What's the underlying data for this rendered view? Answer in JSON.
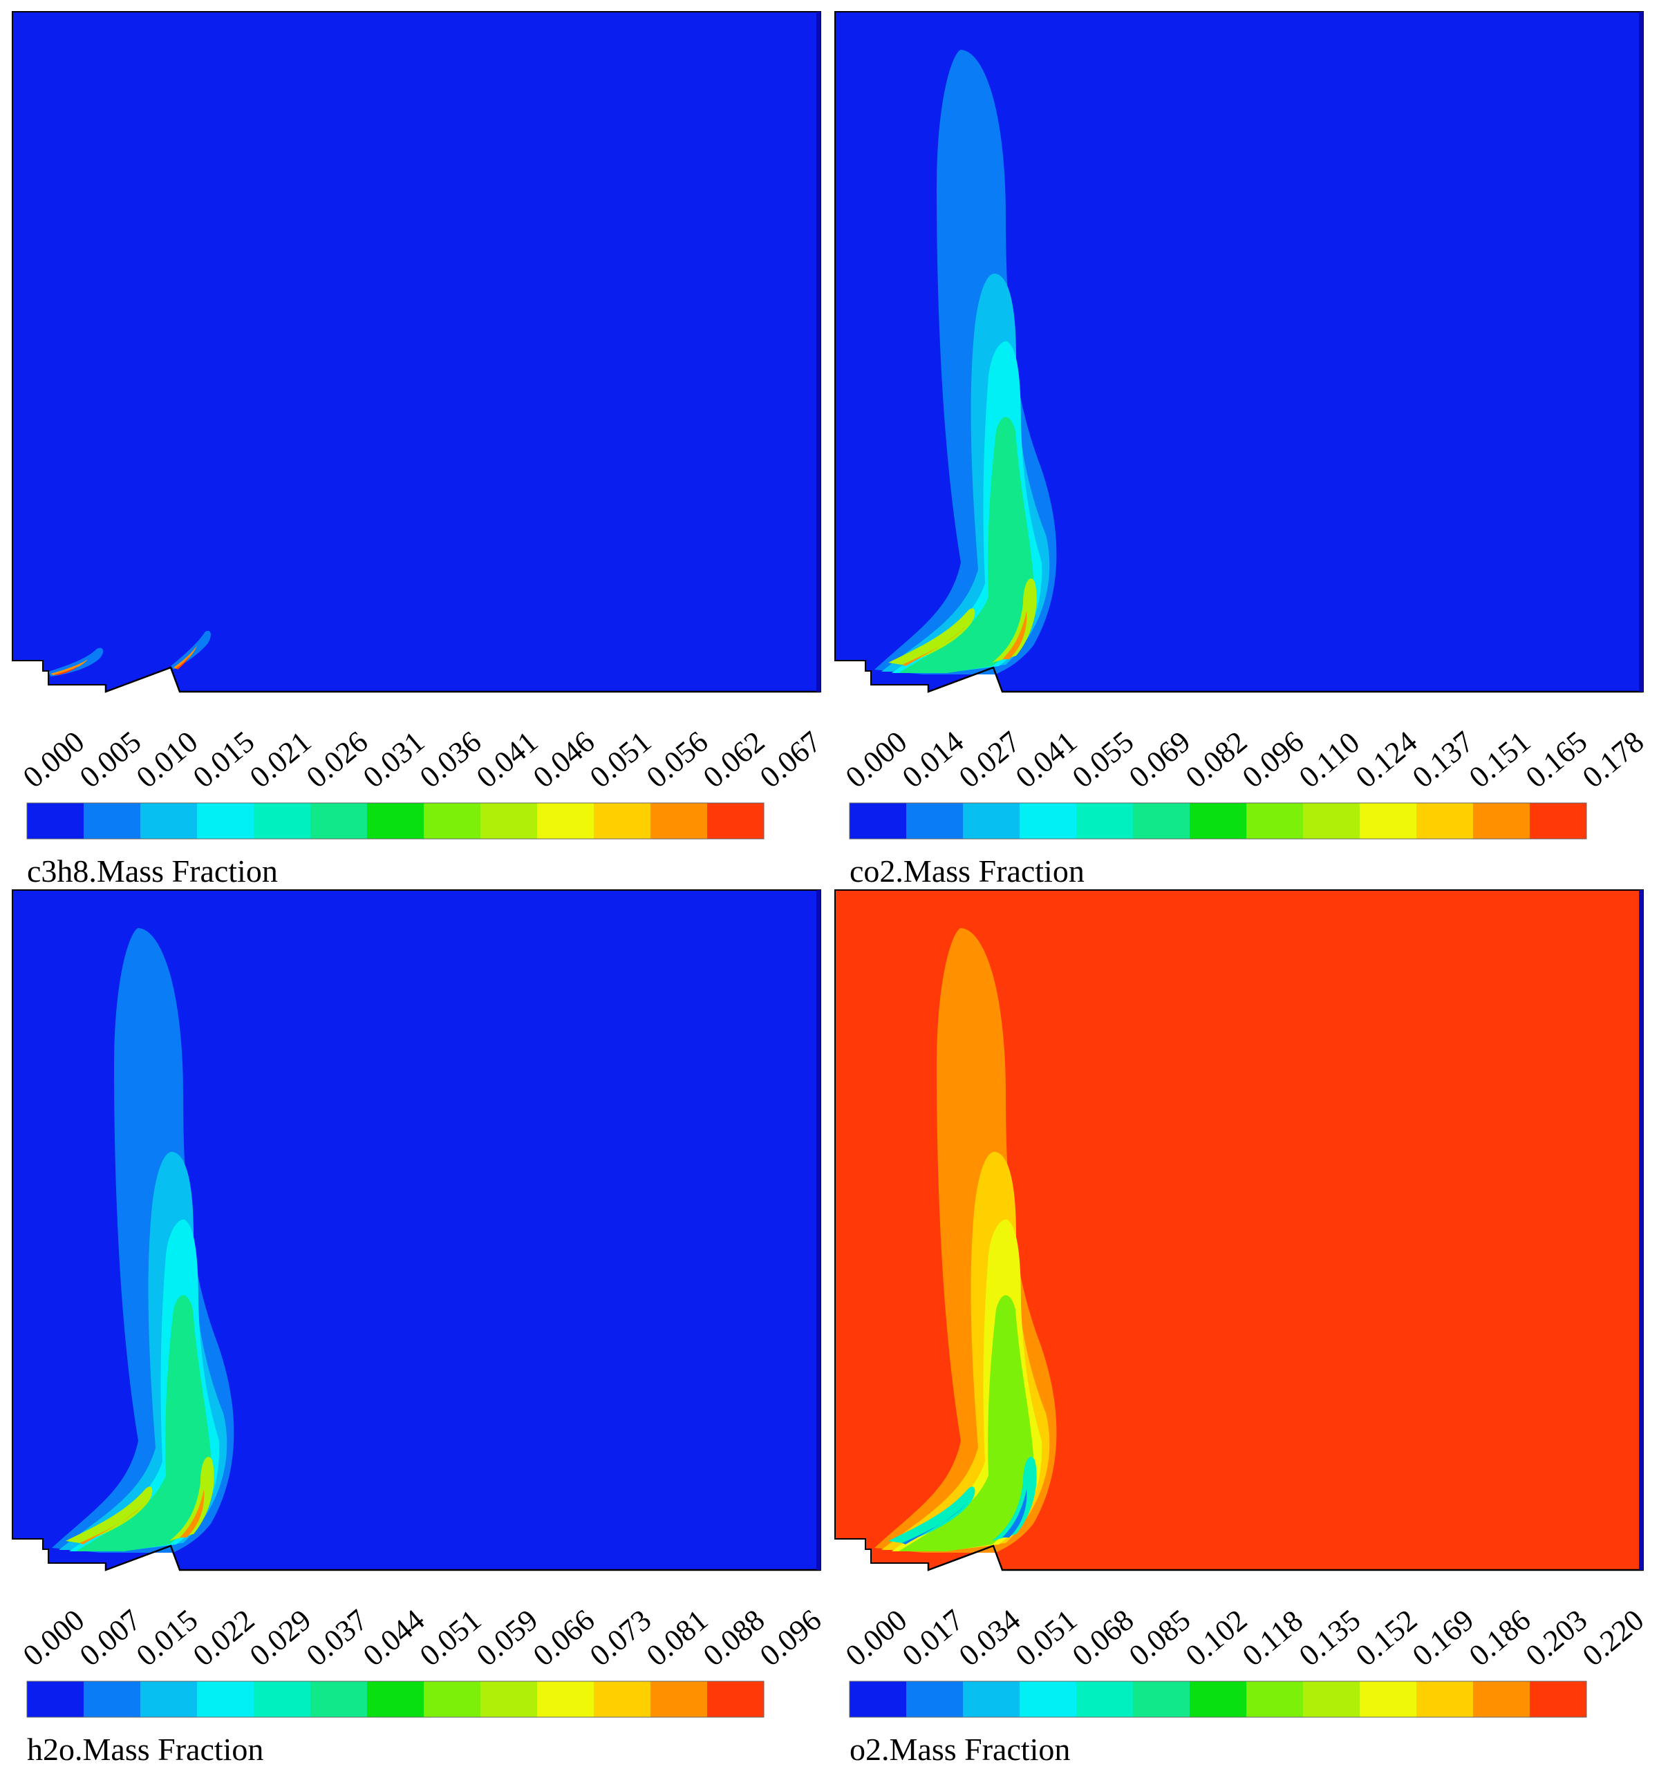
{
  "colormap": [
    "#0a1ef0",
    "#0a7cf5",
    "#08bff2",
    "#00f0f5",
    "#00f0c0",
    "#10e88a",
    "#08e010",
    "#7cf008",
    "#b0f008",
    "#eff808",
    "#ffd000",
    "#ff9000",
    "#ff3a08"
  ],
  "chart_data": [
    {
      "type": "heatmap",
      "title": "c3h8.Mass Fraction",
      "legend_ticks": [
        "0.000",
        "0.005",
        "0.010",
        "0.015",
        "0.021",
        "0.026",
        "0.031",
        "0.036",
        "0.041",
        "0.046",
        "0.051",
        "0.056",
        "0.062",
        "0.067"
      ],
      "background_level": 0,
      "plume": "none"
    },
    {
      "type": "heatmap",
      "title": "co2.Mass Fraction",
      "legend_ticks": [
        "0.000",
        "0.014",
        "0.027",
        "0.041",
        "0.055",
        "0.069",
        "0.082",
        "0.096",
        "0.110",
        "0.124",
        "0.137",
        "0.151",
        "0.165",
        "0.178"
      ],
      "background_level": 0,
      "plume": "product"
    },
    {
      "type": "heatmap",
      "title": "h2o.Mass Fraction",
      "legend_ticks": [
        "0.000",
        "0.007",
        "0.015",
        "0.022",
        "0.029",
        "0.037",
        "0.044",
        "0.051",
        "0.059",
        "0.066",
        "0.073",
        "0.081",
        "0.088",
        "0.096"
      ],
      "background_level": 0,
      "plume": "product"
    },
    {
      "type": "heatmap",
      "title": "o2.Mass Fraction",
      "legend_ticks": [
        "0.000",
        "0.017",
        "0.034",
        "0.051",
        "0.068",
        "0.085",
        "0.102",
        "0.118",
        "0.135",
        "0.152",
        "0.169",
        "0.186",
        "0.203",
        "0.220"
      ],
      "background_level": 12,
      "plume": "oxidizer"
    }
  ]
}
